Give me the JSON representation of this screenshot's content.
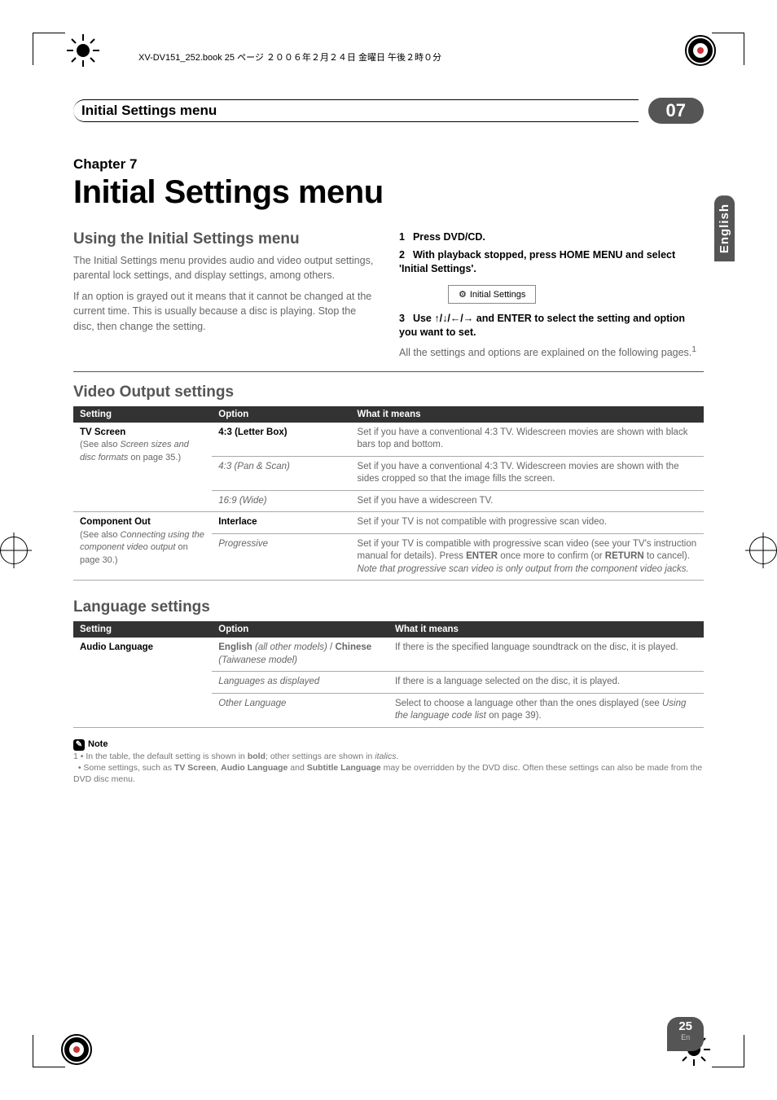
{
  "file_stamp": "XV-DV151_252.book 25 ページ ２００６年２月２４日 金曜日 午後２時０分",
  "header": {
    "title": "Initial Settings menu",
    "section_number": "07"
  },
  "side_tab": "English",
  "chapter": {
    "label": "Chapter 7",
    "title": "Initial Settings menu"
  },
  "intro": {
    "heading": "Using the Initial Settings menu",
    "p1": "The Initial Settings menu provides audio and video output settings, parental lock settings, and display settings, among others.",
    "p2": "If an option is grayed out it means that it cannot be changed at the current time. This is usually because a disc is playing. Stop the disc, then change the setting."
  },
  "steps": {
    "s1": "Press DVD/CD.",
    "s2": "With playback stopped, press HOME MENU and select 'Initial Settings'.",
    "box_label": "Initial Settings",
    "s3_pre": "Use ",
    "s3_arrows": "↑/↓/←/→",
    "s3_post": " and ENTER to select the setting and option you want to set.",
    "s3_explain": "All the settings and options are explained on the following pages.",
    "s3_sup": "1"
  },
  "video_output": {
    "heading": "Video Output settings",
    "columns": {
      "c1": "Setting",
      "c2": "Option",
      "c3": "What it means"
    },
    "rows": [
      {
        "setting_title": "TV Screen",
        "setting_sub": "(See also Screen sizes and disc formats on page 35.)",
        "option": "4:3 (Letter Box)",
        "option_bold": true,
        "meaning": "Set if you have a conventional 4:3 TV. Widescreen movies are shown with black bars top and bottom."
      },
      {
        "setting_title": "",
        "setting_sub": "",
        "option": "4:3 (Pan & Scan)",
        "option_italic": true,
        "meaning": "Set if you have a conventional 4:3 TV. Widescreen movies are shown with the sides cropped so that the image fills the screen."
      },
      {
        "setting_title": "",
        "setting_sub": "",
        "option": "16:9 (Wide)",
        "option_italic": true,
        "meaning": "Set if you have a widescreen TV."
      },
      {
        "setting_title": "Component Out",
        "setting_sub": "(See also Connecting using the component video output on page 30.)",
        "option": "Interlace",
        "option_bold": true,
        "meaning": "Set if your TV is not compatible with progressive scan video."
      },
      {
        "setting_title": "",
        "setting_sub": "",
        "option": "Progressive",
        "option_italic": true,
        "meaning_html": "Set if your TV is compatible with progressive scan video (see your TV's instruction manual for details). Press <b>ENTER</b> once more to confirm (or <b>RETURN</b> to cancel).<br><i>Note that progressive scan video is only output from the component video jacks.</i>"
      }
    ]
  },
  "language": {
    "heading": "Language settings",
    "columns": {
      "c1": "Setting",
      "c2": "Option",
      "c3": "What it means"
    },
    "rows": [
      {
        "setting_title": "Audio Language",
        "setting_sub": "",
        "option_html": "<b>English</b> <i>(all other models)</i> / <b>Chinese</b> <i>(Taiwanese model)</i>",
        "meaning": "If there is the specified language soundtrack on the disc, it is played."
      },
      {
        "setting_title": "",
        "setting_sub": "",
        "option": "Languages as displayed",
        "option_italic": true,
        "meaning": "If there is a language selected on the disc, it is played."
      },
      {
        "setting_title": "",
        "setting_sub": "",
        "option": "Other Language",
        "option_italic": true,
        "meaning_html": "Select to choose a language other than the ones displayed (see <i>Using the language code list</i> on page 39)."
      }
    ]
  },
  "note": {
    "label": "Note",
    "line1_html": "1 • In the table, the default setting is shown in <b>bold</b>; other settings are shown in <i>italics</i>.",
    "line2_html": "&nbsp;&nbsp;• Some settings, such as <b>TV Screen</b>, <b>Audio Language</b> and <b>Subtitle Language</b> may be overridden by the DVD disc. Often these settings can also be made from the DVD disc menu."
  },
  "page_number": {
    "num": "25",
    "lang": "En"
  },
  "colors": {
    "pill_bg": "#555555",
    "table_header_bg": "#333333",
    "body_text": "#666666",
    "heading_gray": "#555555"
  }
}
